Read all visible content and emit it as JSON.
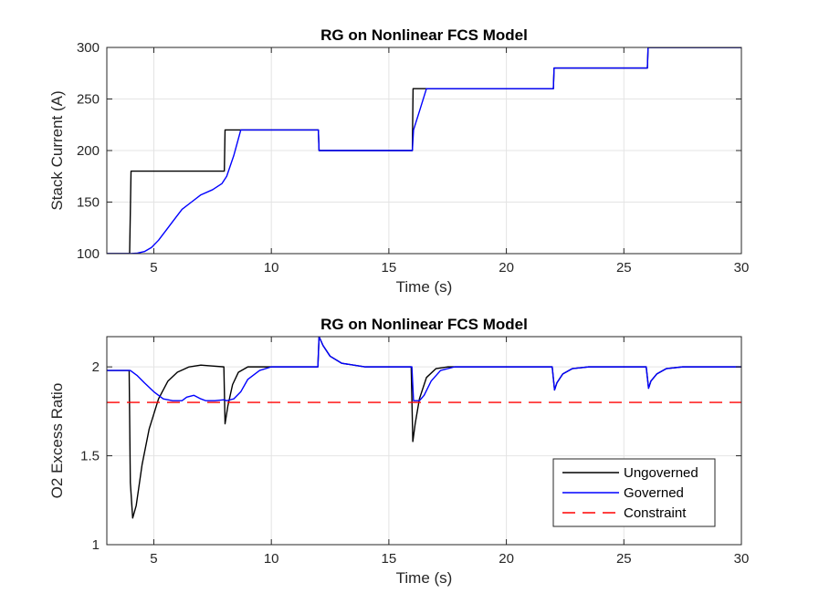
{
  "chart_data": [
    {
      "type": "line",
      "title": "RG on Nonlinear FCS Model",
      "xlabel": "Time (s)",
      "ylabel": "Stack Current (A)",
      "xlim": [
        3,
        30
      ],
      "ylim": [
        100,
        300
      ],
      "xticks": [
        5,
        10,
        15,
        20,
        25,
        30
      ],
      "yticks": [
        100,
        150,
        200,
        250,
        300
      ],
      "grid": true,
      "series": [
        {
          "name": "Ungoverned",
          "color": "#000000",
          "x": [
            3,
            3.97,
            4.0,
            4.03,
            8.0,
            8.03,
            12.0,
            12.03,
            16.0,
            16.03,
            22.0,
            22.03,
            26.0,
            26.03,
            30
          ],
          "y": [
            100,
            100,
            140,
            180,
            180,
            220,
            220,
            200,
            200,
            260,
            260,
            280,
            280,
            300,
            300
          ]
        },
        {
          "name": "Governed",
          "color": "#0000ff",
          "x": [
            3,
            4.0,
            4.3,
            4.6,
            4.9,
            5.2,
            5.5,
            5.8,
            6.2,
            6.6,
            7.0,
            7.5,
            7.9,
            8.1,
            8.4,
            8.7,
            12.0,
            12.03,
            16.0,
            16.05,
            16.3,
            16.6,
            22.0,
            22.03,
            26.0,
            26.03,
            30
          ],
          "y": [
            100,
            100,
            100.5,
            102,
            106,
            113,
            122,
            131,
            143,
            150,
            157,
            162,
            168,
            175,
            195,
            220,
            220,
            200,
            200,
            220,
            238,
            260,
            260,
            280,
            280,
            300,
            300
          ]
        }
      ]
    },
    {
      "type": "line",
      "title": "RG on Nonlinear FCS Model",
      "xlabel": "Time (s)",
      "ylabel": "O2 Excess Ratio",
      "xlim": [
        3,
        30
      ],
      "ylim": [
        1,
        2.17
      ],
      "xticks": [
        5,
        10,
        15,
        20,
        25,
        30
      ],
      "yticks": [
        1,
        1.5,
        2
      ],
      "grid": true,
      "legend": "lower-right",
      "series": [
        {
          "name": "Ungoverned",
          "color": "#000000",
          "x": [
            3,
            3.95,
            4.0,
            4.1,
            4.25,
            4.5,
            4.8,
            5.2,
            5.6,
            6.0,
            6.5,
            7.0,
            7.5,
            7.98,
            8.03,
            8.15,
            8.35,
            8.6,
            9.0,
            9.5,
            10.0,
            11.98,
            12.03,
            12.2,
            12.5,
            13.0,
            14.0,
            15.95,
            16.02,
            16.12,
            16.3,
            16.6,
            17.0,
            17.5,
            18.0,
            21.95,
            22.05,
            22.15,
            22.4,
            22.8,
            23.5,
            25.95,
            26.05,
            26.15,
            26.4,
            26.8,
            27.5,
            30
          ],
          "y": [
            1.98,
            1.98,
            1.35,
            1.15,
            1.22,
            1.45,
            1.65,
            1.82,
            1.92,
            1.97,
            2.0,
            2.01,
            2.005,
            2.0,
            1.68,
            1.78,
            1.9,
            1.97,
            2.0,
            2.0,
            2.0,
            2.0,
            2.17,
            2.12,
            2.06,
            2.02,
            2.0,
            2.0,
            1.58,
            1.68,
            1.82,
            1.94,
            1.99,
            2.0,
            2.0,
            2.0,
            1.87,
            1.91,
            1.96,
            1.99,
            2.0,
            2.0,
            1.88,
            1.92,
            1.96,
            1.99,
            2.0,
            2.0
          ]
        },
        {
          "name": "Governed",
          "color": "#0000ff",
          "x": [
            3,
            4.0,
            4.3,
            4.6,
            5.0,
            5.4,
            5.8,
            6.2,
            6.4,
            6.7,
            7.0,
            7.2,
            7.6,
            7.98,
            8.1,
            8.4,
            8.7,
            9.0,
            9.5,
            10.0,
            11.98,
            12.03,
            12.2,
            12.5,
            13.0,
            14.0,
            15.98,
            16.05,
            16.3,
            16.5,
            16.8,
            17.2,
            17.8,
            21.95,
            22.05,
            22.15,
            22.4,
            22.8,
            23.5,
            25.95,
            26.05,
            26.15,
            26.4,
            26.8,
            27.5,
            30
          ],
          "y": [
            1.98,
            1.98,
            1.95,
            1.91,
            1.86,
            1.82,
            1.81,
            1.81,
            1.83,
            1.84,
            1.82,
            1.81,
            1.81,
            1.815,
            1.81,
            1.82,
            1.86,
            1.93,
            1.98,
            2.0,
            2.0,
            2.17,
            2.12,
            2.06,
            2.02,
            2.0,
            2.0,
            1.81,
            1.81,
            1.84,
            1.92,
            1.98,
            2.0,
            2.0,
            1.87,
            1.91,
            1.96,
            1.99,
            2.0,
            2.0,
            1.88,
            1.92,
            1.96,
            1.99,
            2.0,
            2.0
          ]
        },
        {
          "name": "Constraint",
          "color": "#ff0000",
          "dashed": true,
          "x": [
            3,
            30
          ],
          "y": [
            1.8,
            1.8
          ]
        }
      ]
    }
  ]
}
